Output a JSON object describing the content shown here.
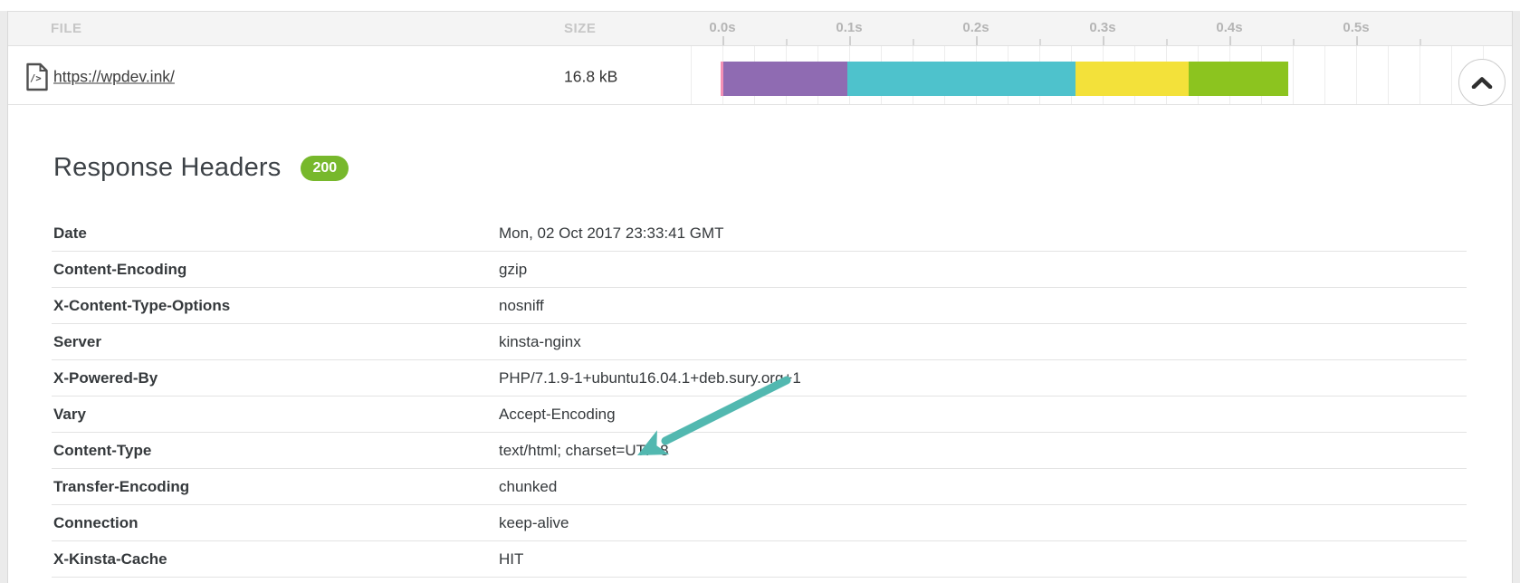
{
  "waterfall_panel": {
    "file_column_header": "FILE",
    "size_column_header": "SIZE",
    "timeline_labels": [
      "0.0s",
      "0.1s",
      "0.2s",
      "0.3s",
      "0.4s",
      "0.5s"
    ],
    "request": {
      "url": "https://wpdev.ink/",
      "size": "16.8 kB",
      "file_icon": "code-file-icon",
      "expand_icon": "chevron-up-icon",
      "timing_segments": [
        {
          "color": "#f390b5",
          "approx_ms": 2
        },
        {
          "color": "#8f6bb2",
          "approx_ms": 98
        },
        {
          "color": "#4ec2cc",
          "approx_ms": 180
        },
        {
          "color": "#f3e13a",
          "approx_ms": 89
        },
        {
          "color": "#8cc41f",
          "approx_ms": 79
        }
      ]
    }
  },
  "response_headers": {
    "title": "Response Headers",
    "status_code": "200",
    "status_color": "#77b82c",
    "rows": [
      {
        "name": "Date",
        "value": "Mon, 02 Oct 2017 23:33:41 GMT"
      },
      {
        "name": "Content-Encoding",
        "value": "gzip"
      },
      {
        "name": "X-Content-Type-Options",
        "value": "nosniff"
      },
      {
        "name": "Server",
        "value": "kinsta-nginx"
      },
      {
        "name": "X-Powered-By",
        "value": "PHP/7.1.9-1+ubuntu16.04.1+deb.sury.org+1"
      },
      {
        "name": "Vary",
        "value": "Accept-Encoding"
      },
      {
        "name": "Content-Type",
        "value": "text/html; charset=UTF-8"
      },
      {
        "name": "Transfer-Encoding",
        "value": "chunked"
      },
      {
        "name": "Connection",
        "value": "keep-alive"
      },
      {
        "name": "X-Kinsta-Cache",
        "value": "HIT"
      }
    ]
  },
  "annotation": {
    "arrow_color": "#52b8b0"
  }
}
